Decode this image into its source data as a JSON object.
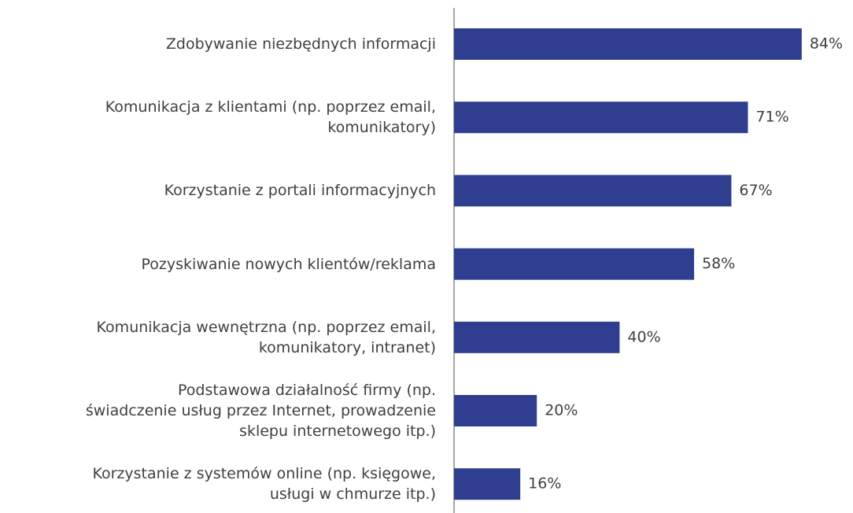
{
  "chart_data": {
    "type": "barh",
    "categories": [
      "Zdobywanie niezbędnych informacji",
      "Komunikacja z klientami (np. poprzez email,\nkomunikatory)",
      "Korzystanie z portali informacyjnych",
      "Pozyskiwanie nowych klientów/reklama",
      "Komunikacja wewnętrzna (np. poprzez email,\nkomunikatory, intranet)",
      "Podstawowa działalność firmy (np.\nświadczenie usług przez Internet, prowadzenie\nsklepu internetowego itp.)",
      "Korzystanie z systemów online (np. księgowe,\nusługi w chmurze itp.)"
    ],
    "values": [
      84,
      71,
      67,
      58,
      40,
      20,
      16
    ],
    "value_labels": [
      "84%",
      "71%",
      "67%",
      "58%",
      "40%",
      "20%",
      "16%"
    ],
    "color": "#2f3e8e",
    "xlim": [
      0,
      100
    ]
  }
}
